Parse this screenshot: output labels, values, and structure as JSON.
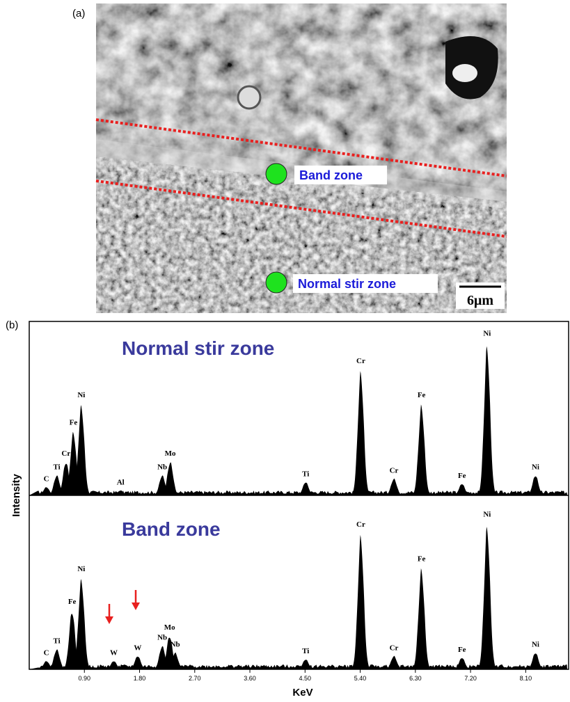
{
  "panel_a": {
    "label": "(a)",
    "annotations": [
      "Band zone",
      "Normal stir zone"
    ],
    "scale_bar": "6μm"
  },
  "panel_b": {
    "label": "(b)",
    "ylabel": "Intensity",
    "xlabel": "KeV"
  },
  "chart_data": [
    {
      "type": "spectrum",
      "title": "Normal stir zone",
      "xlim": [
        0,
        8.8
      ],
      "ylim": [
        0,
        100
      ],
      "color": "#000000",
      "peaks": [
        {
          "label": "C",
          "x": 0.28,
          "height": 5
        },
        {
          "label": "Ti",
          "x": 0.45,
          "height": 12
        },
        {
          "label": "Cr",
          "x": 0.6,
          "height": 20
        },
        {
          "label": "Fe",
          "x": 0.72,
          "height": 38
        },
        {
          "label": "Ni",
          "x": 0.85,
          "height": 54
        },
        {
          "label": "Al",
          "x": 1.49,
          "height": 3
        },
        {
          "label": "Nb",
          "x": 2.17,
          "height": 12
        },
        {
          "label": "Mo",
          "x": 2.3,
          "height": 20
        },
        {
          "label": "Ti",
          "x": 4.51,
          "height": 8
        },
        {
          "label": "Cr",
          "x": 5.41,
          "height": 74
        },
        {
          "label": "Cr",
          "x": 5.95,
          "height": 10
        },
        {
          "label": "Fe",
          "x": 6.4,
          "height": 54
        },
        {
          "label": "Fe",
          "x": 7.06,
          "height": 7
        },
        {
          "label": "Ni",
          "x": 7.47,
          "height": 90
        },
        {
          "label": "Ni",
          "x": 8.26,
          "height": 12
        }
      ]
    },
    {
      "type": "spectrum",
      "title": "Band zone",
      "xlim": [
        0,
        8.8
      ],
      "ylim": [
        0,
        100
      ],
      "color": "#000000",
      "xticks": [
        {
          "value": 0.9,
          "label": "0.90"
        },
        {
          "value": 1.8,
          "label": "1.80"
        },
        {
          "value": 2.7,
          "label": "2.70"
        },
        {
          "value": 3.6,
          "label": "3.60"
        },
        {
          "value": 4.5,
          "label": "4.50"
        },
        {
          "value": 5.4,
          "label": "5.40"
        },
        {
          "value": 6.3,
          "label": "6.30"
        },
        {
          "value": 7.2,
          "label": "7.20"
        },
        {
          "value": 8.1,
          "label": "8.10"
        }
      ],
      "peaks": [
        {
          "label": "C",
          "x": 0.28,
          "height": 5
        },
        {
          "label": "Ti",
          "x": 0.45,
          "height": 12
        },
        {
          "label": "Fe",
          "x": 0.7,
          "height": 35
        },
        {
          "label": "Ni",
          "x": 0.85,
          "height": 54
        },
        {
          "label": "W",
          "x": 1.38,
          "height": 5
        },
        {
          "label": "W",
          "x": 1.77,
          "height": 8
        },
        {
          "label": "Nb",
          "x": 2.17,
          "height": 14
        },
        {
          "label": "Mo",
          "x": 2.29,
          "height": 20
        },
        {
          "label": "Nb",
          "x": 2.38,
          "height": 10
        },
        {
          "label": "Ti",
          "x": 4.51,
          "height": 6
        },
        {
          "label": "Cr",
          "x": 5.41,
          "height": 80
        },
        {
          "label": "Cr",
          "x": 5.95,
          "height": 8
        },
        {
          "label": "Fe",
          "x": 6.4,
          "height": 60
        },
        {
          "label": "Fe",
          "x": 7.06,
          "height": 7
        },
        {
          "label": "Ni",
          "x": 7.47,
          "height": 86
        },
        {
          "label": "Ni",
          "x": 8.26,
          "height": 10
        }
      ]
    }
  ]
}
